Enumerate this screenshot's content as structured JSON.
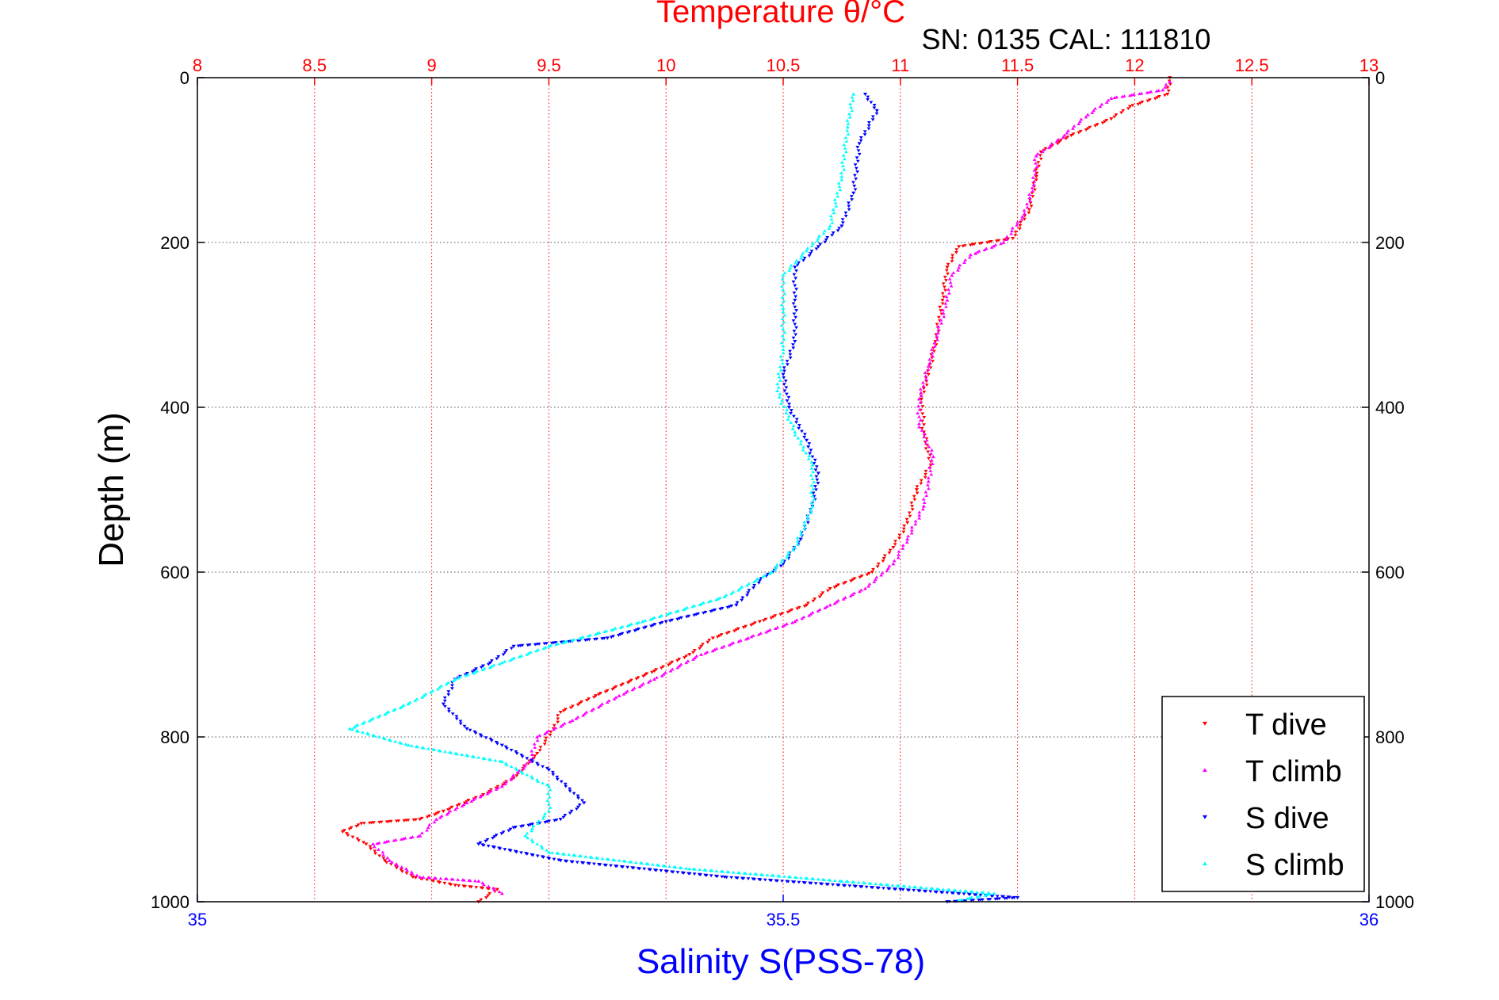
{
  "chart_data": {
    "type": "scatter",
    "title": "Temperature θ/°C",
    "subtitle": "SN: 0135  CAL: 111810",
    "ylabel": "Depth (m)",
    "xlabel": "Salinity S(PSS-78)",
    "y_axis": {
      "range": [
        0,
        1000
      ],
      "reversed": true,
      "ticks": [
        "0",
        "200",
        "400",
        "600",
        "800",
        "1000"
      ],
      "grid": true
    },
    "x_top_axis": {
      "label": "Temperature θ/°C",
      "range": [
        8,
        13
      ],
      "ticks": [
        "8",
        "8.5",
        "9",
        "9.5",
        "10",
        "10.5",
        "11",
        "11.5",
        "12",
        "12.5",
        "13"
      ],
      "color": "#ff0000",
      "grid": true
    },
    "x_bottom_axis": {
      "label": "Salinity S(PSS-78)",
      "range": [
        35,
        36
      ],
      "ticks": [
        "35",
        "35.5",
        "36"
      ],
      "color": "#0000ff"
    },
    "legend_position": "bottom-right",
    "series": [
      {
        "name": "T dive",
        "axis": "top",
        "color": "#ff0000",
        "marker": "triangle-down",
        "points": [
          [
            12.15,
            0
          ],
          [
            12.14,
            20
          ],
          [
            11.98,
            35
          ],
          [
            11.9,
            50
          ],
          [
            11.73,
            70
          ],
          [
            11.6,
            90
          ],
          [
            11.58,
            120
          ],
          [
            11.55,
            160
          ],
          [
            11.48,
            195
          ],
          [
            11.25,
            205
          ],
          [
            11.2,
            230
          ],
          [
            11.18,
            270
          ],
          [
            11.15,
            320
          ],
          [
            11.12,
            360
          ],
          [
            11.09,
            390
          ],
          [
            11.1,
            430
          ],
          [
            11.13,
            470
          ],
          [
            11.07,
            500
          ],
          [
            11.03,
            540
          ],
          [
            10.97,
            570
          ],
          [
            10.88,
            600
          ],
          [
            10.7,
            620
          ],
          [
            10.6,
            640
          ],
          [
            10.4,
            660
          ],
          [
            10.2,
            680
          ],
          [
            10.1,
            700
          ],
          [
            9.95,
            720
          ],
          [
            9.7,
            750
          ],
          [
            9.55,
            770
          ],
          [
            9.52,
            790
          ],
          [
            9.45,
            820
          ],
          [
            9.35,
            850
          ],
          [
            9.22,
            870
          ],
          [
            9.05,
            890
          ],
          [
            8.95,
            900
          ],
          [
            8.7,
            905
          ],
          [
            8.62,
            915
          ],
          [
            8.72,
            930
          ],
          [
            8.8,
            950
          ],
          [
            8.92,
            970
          ],
          [
            9.1,
            980
          ],
          [
            9.28,
            985
          ],
          [
            9.2,
            1000
          ]
        ]
      },
      {
        "name": "T climb",
        "axis": "top",
        "color": "#ff00ff",
        "marker": "triangle-up",
        "points": [
          [
            12.15,
            5
          ],
          [
            12.12,
            15
          ],
          [
            11.9,
            25
          ],
          [
            11.8,
            45
          ],
          [
            11.7,
            70
          ],
          [
            11.58,
            95
          ],
          [
            11.57,
            130
          ],
          [
            11.53,
            165
          ],
          [
            11.44,
            200
          ],
          [
            11.3,
            215
          ],
          [
            11.22,
            240
          ],
          [
            11.2,
            270
          ],
          [
            11.16,
            310
          ],
          [
            11.12,
            350
          ],
          [
            11.08,
            390
          ],
          [
            11.08,
            420
          ],
          [
            11.14,
            460
          ],
          [
            11.12,
            490
          ],
          [
            11.1,
            520
          ],
          [
            11.03,
            560
          ],
          [
            10.97,
            590
          ],
          [
            10.85,
            620
          ],
          [
            10.7,
            640
          ],
          [
            10.55,
            660
          ],
          [
            10.35,
            680
          ],
          [
            10.15,
            700
          ],
          [
            9.95,
            730
          ],
          [
            9.8,
            750
          ],
          [
            9.6,
            780
          ],
          [
            9.45,
            800
          ],
          [
            9.42,
            830
          ],
          [
            9.3,
            860
          ],
          [
            9.15,
            880
          ],
          [
            9.02,
            900
          ],
          [
            8.95,
            920
          ],
          [
            8.75,
            930
          ],
          [
            8.82,
            950
          ],
          [
            8.95,
            970
          ],
          [
            9.2,
            975
          ],
          [
            9.3,
            990
          ]
        ]
      },
      {
        "name": "S dive",
        "axis": "bottom",
        "color": "#0000ff",
        "marker": "triangle-down",
        "points": [
          [
            35.57,
            20
          ],
          [
            35.58,
            40
          ],
          [
            35.565,
            80
          ],
          [
            35.56,
            140
          ],
          [
            35.55,
            180
          ],
          [
            35.53,
            205
          ],
          [
            35.51,
            230
          ],
          [
            35.51,
            270
          ],
          [
            35.51,
            320
          ],
          [
            35.5,
            360
          ],
          [
            35.505,
            400
          ],
          [
            35.52,
            440
          ],
          [
            35.53,
            480
          ],
          [
            35.525,
            520
          ],
          [
            35.515,
            560
          ],
          [
            35.5,
            590
          ],
          [
            35.48,
            610
          ],
          [
            35.46,
            640
          ],
          [
            35.4,
            660
          ],
          [
            35.35,
            680
          ],
          [
            35.27,
            690
          ],
          [
            35.25,
            710
          ],
          [
            35.22,
            730
          ],
          [
            35.21,
            760
          ],
          [
            35.23,
            790
          ],
          [
            35.26,
            810
          ],
          [
            35.3,
            840
          ],
          [
            35.33,
            880
          ],
          [
            35.31,
            900
          ],
          [
            35.27,
            910
          ],
          [
            35.24,
            930
          ],
          [
            35.31,
            950
          ],
          [
            35.45,
            970
          ],
          [
            35.6,
            985
          ],
          [
            35.7,
            995
          ],
          [
            35.64,
            1000
          ]
        ]
      },
      {
        "name": "S climb",
        "axis": "bottom",
        "color": "#00ffff",
        "marker": "triangle-up",
        "points": [
          [
            35.56,
            20
          ],
          [
            35.555,
            60
          ],
          [
            35.55,
            120
          ],
          [
            35.54,
            180
          ],
          [
            35.52,
            210
          ],
          [
            35.5,
            240
          ],
          [
            35.5,
            280
          ],
          [
            35.5,
            330
          ],
          [
            35.495,
            380
          ],
          [
            35.51,
            430
          ],
          [
            35.525,
            470
          ],
          [
            35.525,
            520
          ],
          [
            35.51,
            570
          ],
          [
            35.49,
            600
          ],
          [
            35.45,
            630
          ],
          [
            35.38,
            660
          ],
          [
            35.3,
            690
          ],
          [
            35.26,
            710
          ],
          [
            35.22,
            730
          ],
          [
            35.18,
            760
          ],
          [
            35.13,
            790
          ],
          [
            35.18,
            810
          ],
          [
            35.26,
            830
          ],
          [
            35.3,
            860
          ],
          [
            35.3,
            890
          ],
          [
            35.28,
            920
          ],
          [
            35.3,
            940
          ],
          [
            35.42,
            960
          ],
          [
            35.55,
            975
          ],
          [
            35.68,
            990
          ],
          [
            35.65,
            998
          ]
        ]
      }
    ]
  }
}
